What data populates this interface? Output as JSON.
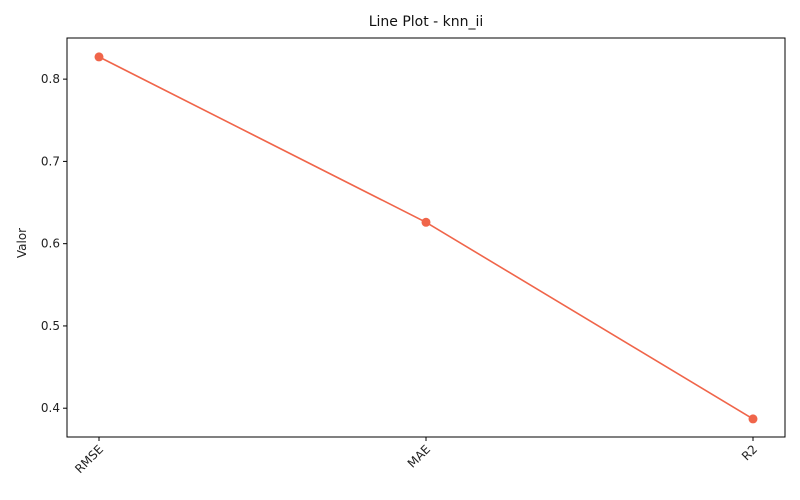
{
  "chart_data": {
    "type": "line",
    "title": "Line Plot - knn_ii",
    "xlabel": "",
    "ylabel": "Valor",
    "categories": [
      "RMSE",
      "MAE",
      "R2"
    ],
    "series": [
      {
        "values": [
          0.827,
          0.626,
          0.387
        ],
        "color": "#f0654a",
        "marker": "circle"
      }
    ],
    "ylim": [
      0.365,
      0.85
    ],
    "yticks": [
      0.4,
      0.5,
      0.6,
      0.7,
      0.8
    ],
    "ytick_labels": [
      "0.4",
      "0.5",
      "0.6",
      "0.7",
      "0.8"
    ],
    "xtick_rotation": 45,
    "grid": false,
    "legend": "none"
  }
}
